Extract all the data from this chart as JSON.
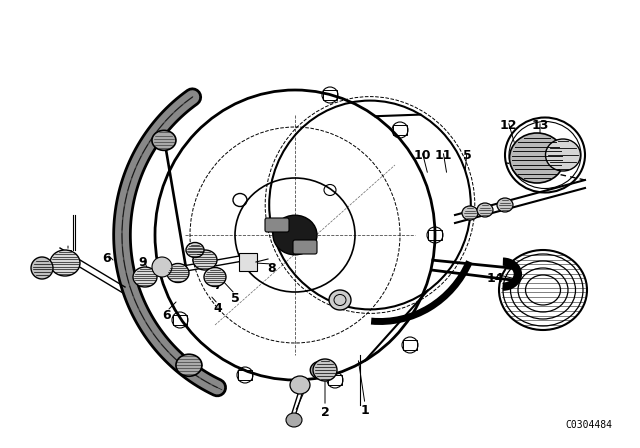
{
  "bg_color": "#ffffff",
  "line_color": "#000000",
  "fig_width": 6.4,
  "fig_height": 4.48,
  "dpi": 100,
  "catalog_number": "C0304484"
}
